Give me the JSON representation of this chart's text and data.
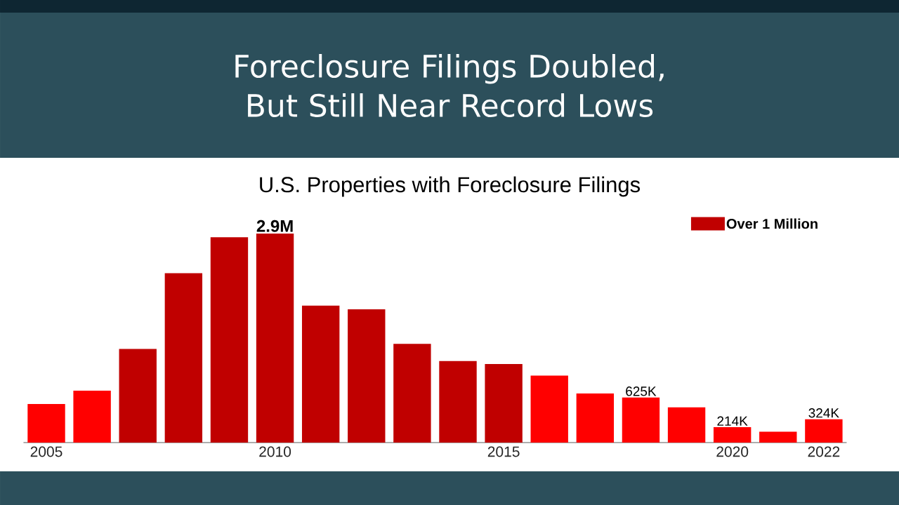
{
  "chart_data": {
    "type": "bar",
    "title": "Foreclosure Filings Doubled, But Still Near Record Lows",
    "subtitle": "U.S. Properties with Foreclosure Filings",
    "categories": [
      "2005",
      null,
      null,
      null,
      null,
      "2010",
      null,
      null,
      null,
      null,
      "2015",
      null,
      null,
      null,
      null,
      "2020",
      null,
      "2022"
    ],
    "series": [
      {
        "name": "Over 1 Million",
        "color": "#c00000",
        "values": [
          null,
          null,
          1300000,
          2350000,
          2850000,
          2900000,
          1900000,
          1850000,
          1370000,
          1130000,
          1090000,
          null,
          null,
          null,
          null,
          null,
          null,
          null
        ],
        "value_labels": [
          null,
          null,
          null,
          null,
          null,
          "2.9M",
          null,
          null,
          null,
          null,
          null,
          null,
          null,
          null,
          null,
          null,
          null,
          null
        ]
      },
      {
        "color": "#ff0000",
        "values": [
          535000,
          720000,
          null,
          null,
          null,
          null,
          null,
          null,
          null,
          null,
          null,
          930000,
          680000,
          625000,
          490000,
          214000,
          150000,
          324000
        ],
        "value_labels": [
          null,
          null,
          null,
          null,
          null,
          null,
          null,
          null,
          null,
          null,
          null,
          null,
          null,
          "625K",
          null,
          "214K",
          null,
          "324K"
        ]
      }
    ],
    "legend": "top right"
  }
}
